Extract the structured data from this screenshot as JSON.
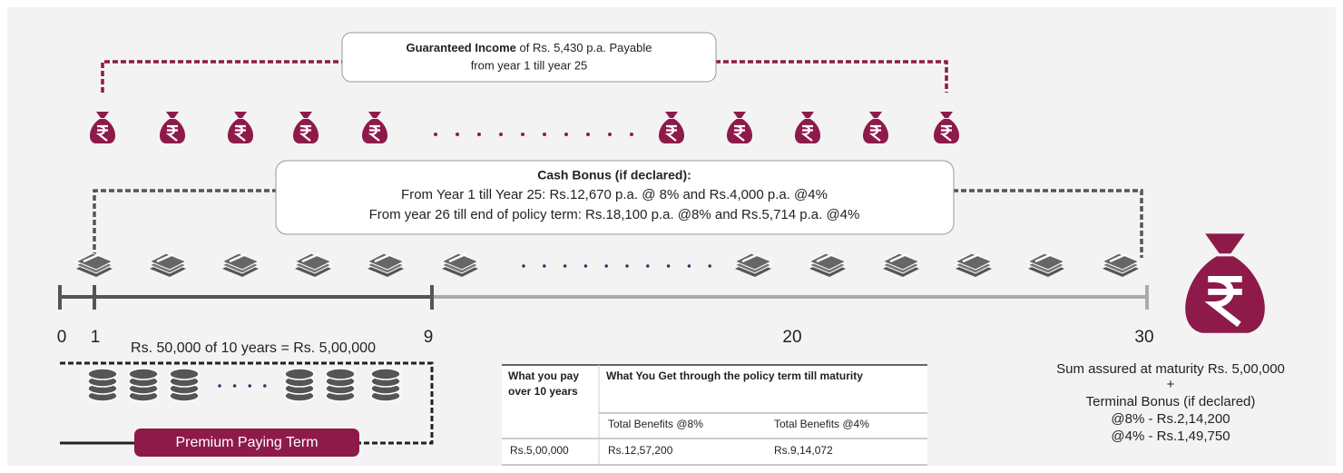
{
  "guaranteed_income": {
    "bold": "Guaranteed Income",
    "rest": "of Rs. 5,430 p.a. Payable",
    "line2": "from year 1 till year 25"
  },
  "cash_bonus": {
    "title": "Cash Bonus (if declared):",
    "line1": "From Year 1 till Year 25: Rs.12,670 p.a. @ 8% and Rs.4,000 p.a. @4%",
    "line2": "From year 26 till end of policy term: Rs.18,100 p.a. @8% and Rs.5,714 p.a. @4%"
  },
  "timeline": {
    "ticks": [
      "0",
      "1",
      "9",
      "20",
      "30"
    ]
  },
  "premium": {
    "text": "Rs. 50,000 of 10 years = Rs. 5,00,000",
    "label": "Premium Paying Term"
  },
  "table": {
    "header": [
      "What you pay over 10 years",
      "What You Get through the policy term till maturity"
    ],
    "subheader": [
      "Total Benefits @8%",
      "Total Benefits @4%"
    ],
    "rows": [
      [
        "Rs.5,00,000",
        "Rs.12,57,200",
        "Rs.9,14,072"
      ]
    ]
  },
  "maturity": {
    "lines": [
      "Sum assured at maturity Rs. 5,00,000",
      "+",
      "Terminal Bonus (if declared)",
      "@8% - Rs.2,14,200",
      "@4% - Rs.1,49,750"
    ]
  }
}
